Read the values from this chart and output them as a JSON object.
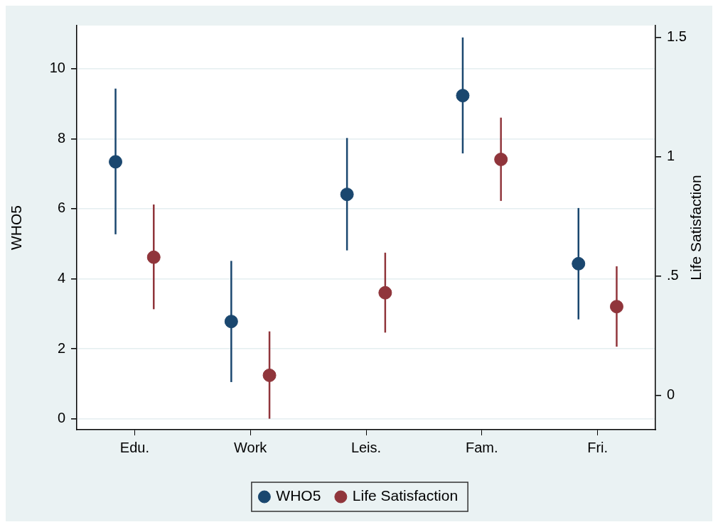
{
  "chart_data": {
    "type": "scatter",
    "categories": [
      "Edu.",
      "Work",
      "Leis.",
      "Fam.",
      "Fri."
    ],
    "ylabel": "WHO5",
    "y2label": "Life Satisfaction",
    "ylim": [
      -0.31,
      11.23
    ],
    "yticks": [
      0,
      2,
      4,
      6,
      8,
      10
    ],
    "y2lim": [
      -0.144,
      1.55
    ],
    "y2ticks": [
      0,
      {
        "value": 0.5,
        "label": ".5"
      },
      1,
      1.5
    ],
    "grid": "y",
    "legend": "bottom",
    "marker": "circle",
    "series": [
      {
        "name": "WHO5",
        "color": "#1a476f",
        "values": [
          7.34,
          2.78,
          6.41,
          9.23,
          4.43
        ],
        "errors": [
          [
            5.27,
            9.43
          ],
          [
            1.05,
            4.51
          ],
          [
            4.81,
            8.02
          ],
          [
            7.58,
            10.89
          ],
          [
            2.84,
            6.02
          ]
        ]
      },
      {
        "name": "Life Satisfaction",
        "color": "#90353b",
        "axis": "y2",
        "values": [
          0.579,
          0.084,
          0.43,
          0.989,
          0.372
        ],
        "errors": [
          [
            0.361,
            0.8
          ],
          [
            -0.098,
            0.268
          ],
          [
            0.263,
            0.598
          ],
          [
            0.815,
            1.164
          ],
          [
            0.204,
            0.541
          ]
        ]
      }
    ]
  }
}
